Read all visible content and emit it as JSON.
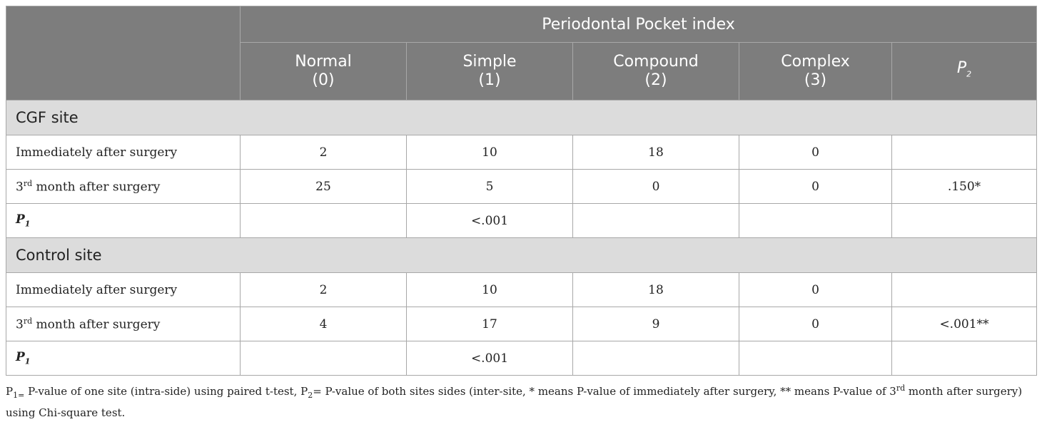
{
  "table": {
    "spanning_header": "Periodontal Pocket index",
    "columns": [
      {
        "name": "Normal",
        "code": "(0)"
      },
      {
        "name": "Simple",
        "code": "(1)"
      },
      {
        "name": "Compound",
        "code": "(2)"
      },
      {
        "name": "Complex",
        "code": "(3)"
      }
    ],
    "p2_label": "P",
    "p2_sub": "2",
    "groups": [
      {
        "title": "CGF site",
        "row1": {
          "label": "Immediately after surgery",
          "values": [
            "2",
            "10",
            "18",
            "0"
          ],
          "p2": ""
        },
        "row2": {
          "label_pre": "3",
          "label_sup": "rd",
          "label_post": " month after surgery",
          "values": [
            "25",
            "5",
            "0",
            "0"
          ],
          "p2": ".150*"
        },
        "p1": {
          "label": "P",
          "sub": "1",
          "value": "<.001"
        }
      },
      {
        "title": "Control site",
        "row1": {
          "label": "Immediately after surgery",
          "values": [
            "2",
            "10",
            "18",
            "0"
          ],
          "p2": ""
        },
        "row2": {
          "label_pre": "3",
          "label_sup": "rd",
          "label_post": " month after surgery",
          "values": [
            "4",
            "17",
            "9",
            "0"
          ],
          "p2": "<.001**"
        },
        "p1": {
          "label": "P",
          "sub": "1",
          "value": "<.001"
        }
      }
    ]
  },
  "footnote": {
    "p1_label": "P",
    "p1_sub": "1=",
    "part1": " P-value of one site (intra-side) using paired t-test, P",
    "p2_sub": "2",
    "part2": "= P-value of both sites sides (inter-site, * means P-value of immediately after surgery, ** means P-value of 3",
    "sup": "rd",
    "part3": " month after surgery) using Chi-square test."
  }
}
